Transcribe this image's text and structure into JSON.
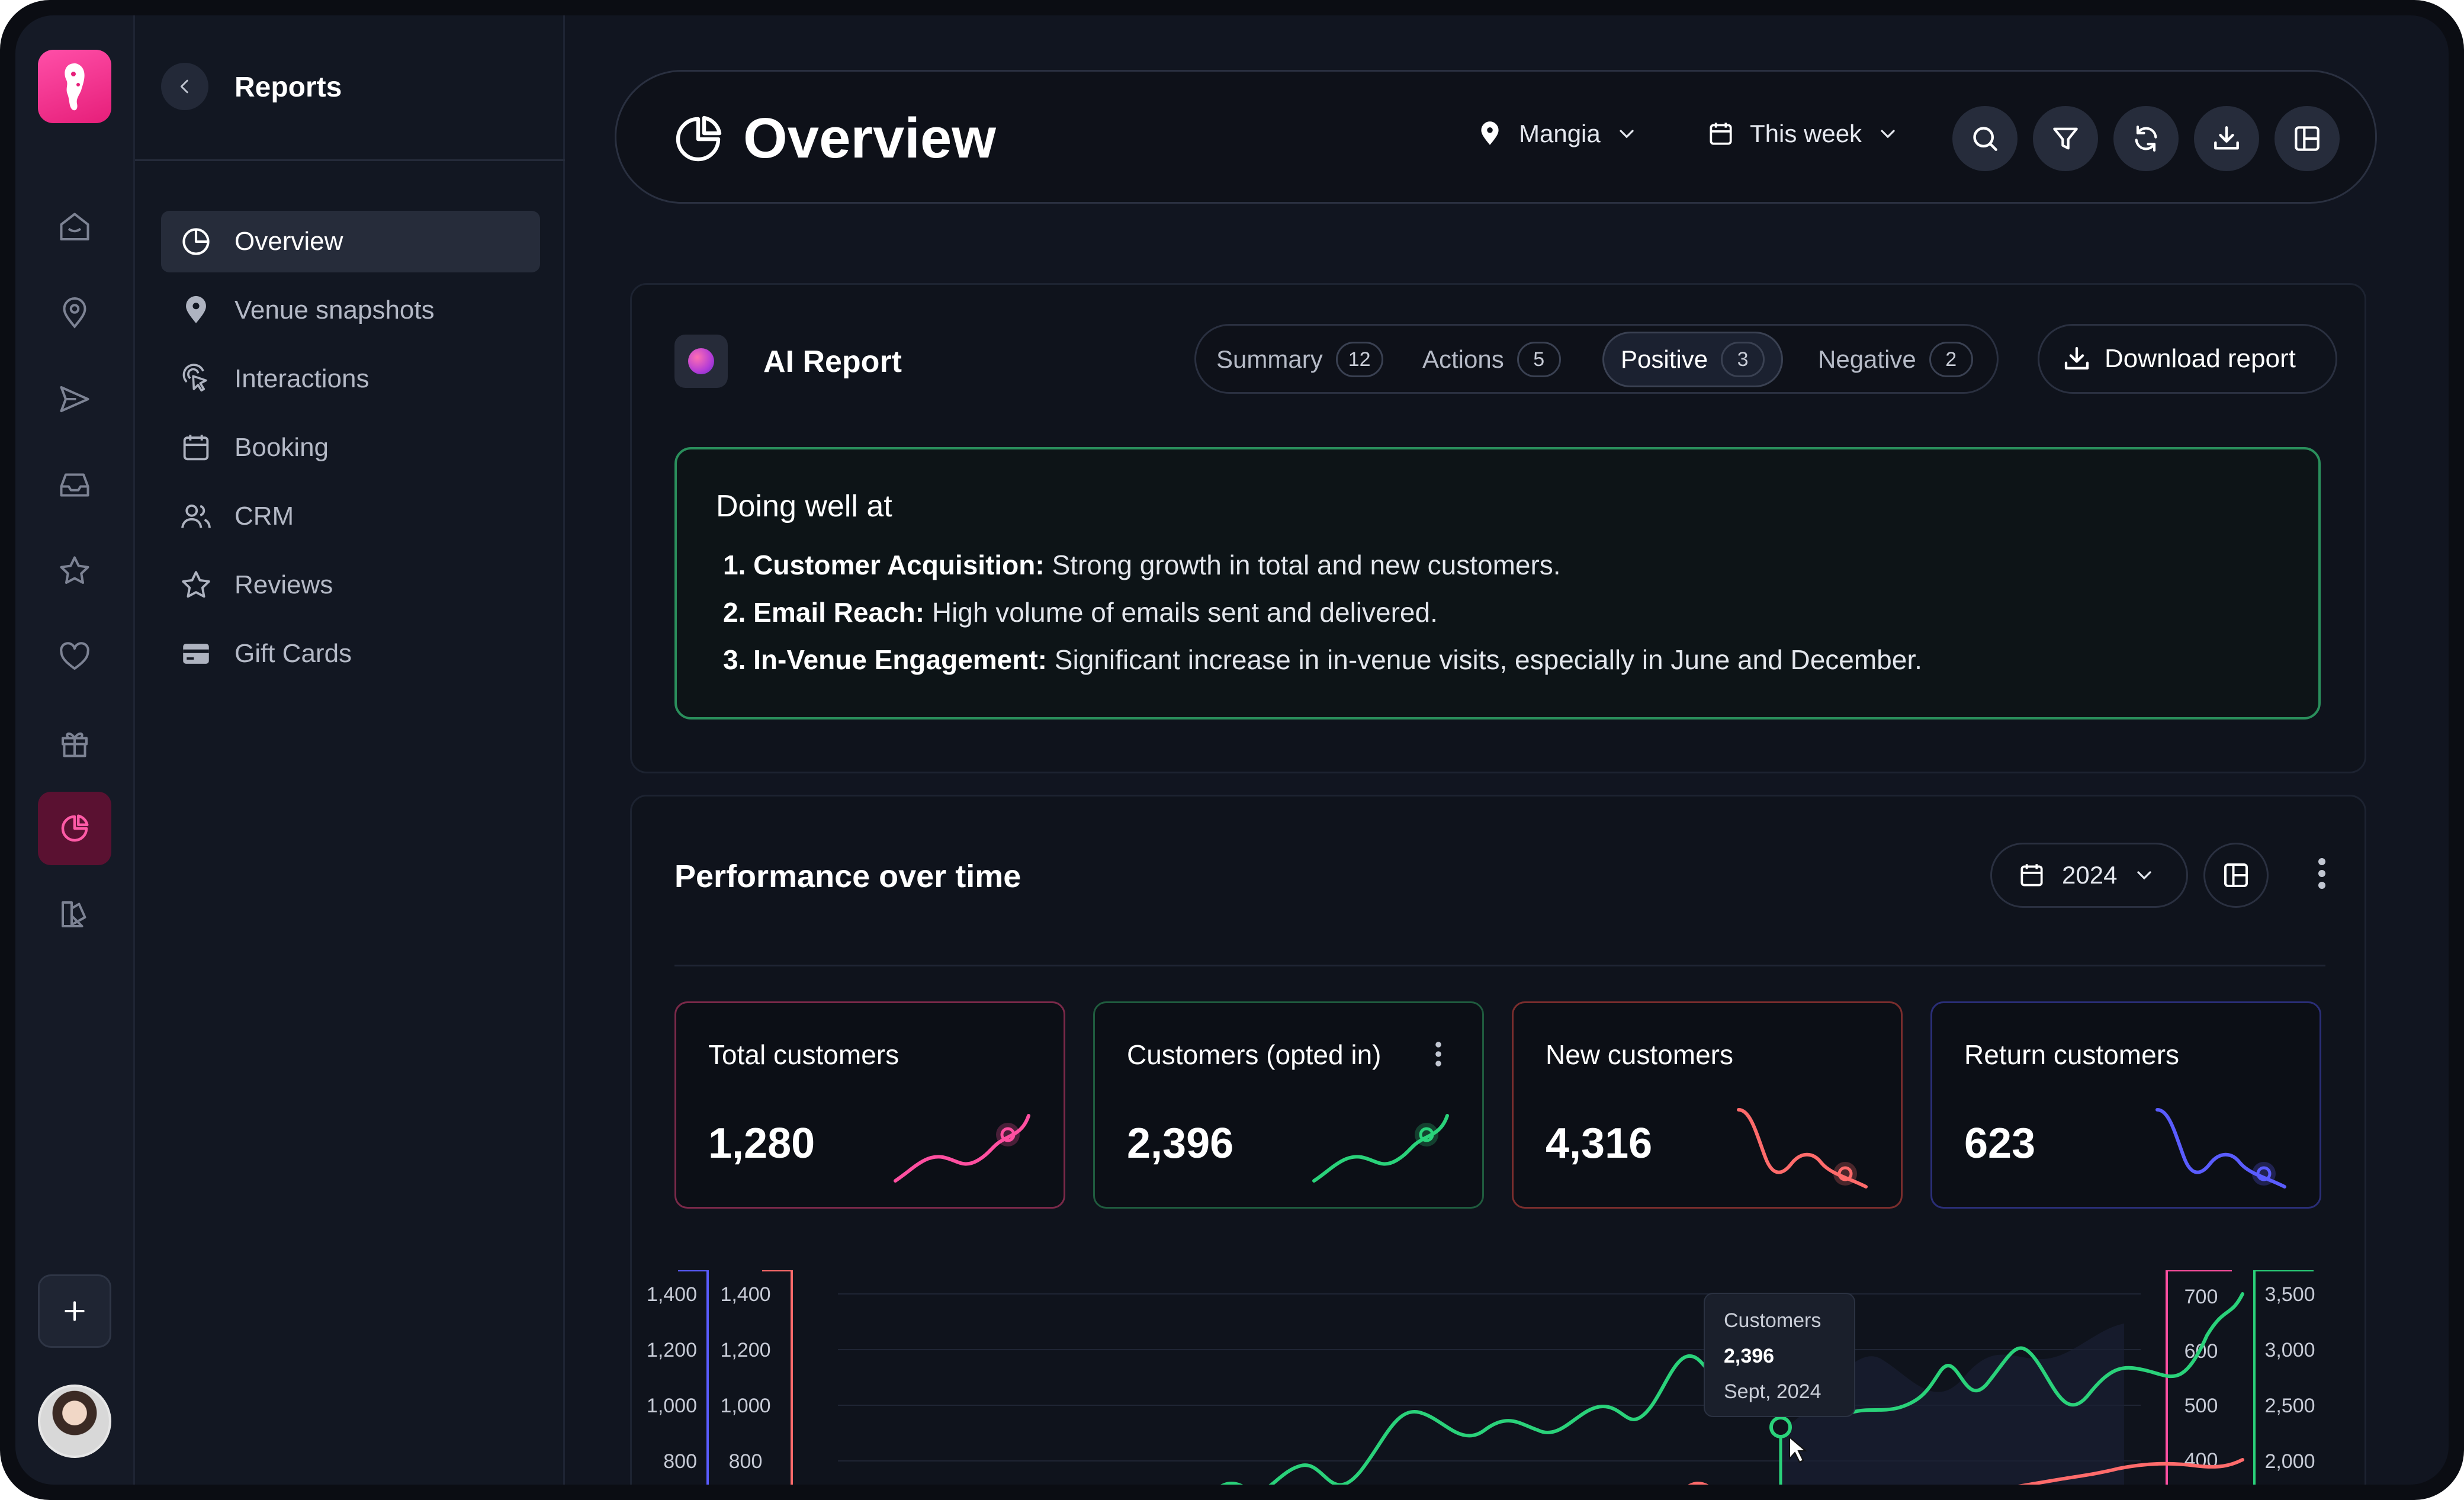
{
  "sidebar": {
    "title": "Reports",
    "items": [
      {
        "label": "Overview"
      },
      {
        "label": "Venue snapshots"
      },
      {
        "label": "Interactions"
      },
      {
        "label": "Booking"
      },
      {
        "label": "CRM"
      },
      {
        "label": "Reviews"
      },
      {
        "label": "Gift Cards"
      }
    ]
  },
  "header": {
    "title": "Overview",
    "venue": "Mangia",
    "period": "This week"
  },
  "ai_report": {
    "title": "AI Report",
    "tabs": [
      {
        "label": "Summary",
        "count": "12"
      },
      {
        "label": "Actions",
        "count": "5"
      },
      {
        "label": "Positive",
        "count": "3"
      },
      {
        "label": "Negative",
        "count": "2"
      }
    ],
    "download_label": "Download report",
    "doing_well": {
      "title": "Doing well at",
      "items": [
        {
          "num": "1.",
          "label": "Customer Acquisition:",
          "text": " Strong growth in total and new customers."
        },
        {
          "num": "2.",
          "label": "Email Reach:",
          "text": " High volume of emails sent and delivered."
        },
        {
          "num": "3.",
          "label": "In-Venue Engagement:",
          "text": " Significant increase in in-venue visits, especially in June and December."
        }
      ]
    }
  },
  "performance": {
    "title": "Performance over time",
    "year": "2024",
    "kpis": [
      {
        "label": "Total customers",
        "value": "1,280",
        "color": "#ff4fa0"
      },
      {
        "label": "Customers (opted in)",
        "value": "2,396",
        "color": "#2ad27a"
      },
      {
        "label": "New customers",
        "value": "4,316",
        "color": "#ff6b6b"
      },
      {
        "label": "Return customers",
        "value": "623",
        "color": "#5a5cff"
      }
    ],
    "tooltip": {
      "series": "Customers",
      "value": "2,396",
      "date": "Sept, 2024"
    }
  },
  "chart_data": {
    "type": "line",
    "axes": {
      "left_outer": [
        "1,400",
        "1,200",
        "1,000",
        "800"
      ],
      "left_inner": [
        "1,400",
        "1,200",
        "1,000",
        "800"
      ],
      "right_inner": [
        "700",
        "600",
        "500",
        "400"
      ],
      "right_outer": [
        "3,500",
        "3,000",
        "2,500",
        "2,000"
      ]
    },
    "series": [
      {
        "color": "#2ad27a"
      },
      {
        "color": "#ff6b6b"
      }
    ],
    "colors": {
      "left_outer": "#5a5cff",
      "left_inner": "#ff6b6b",
      "right_inner": "#ff4fa0",
      "right_outer": "#2ad27a"
    }
  }
}
